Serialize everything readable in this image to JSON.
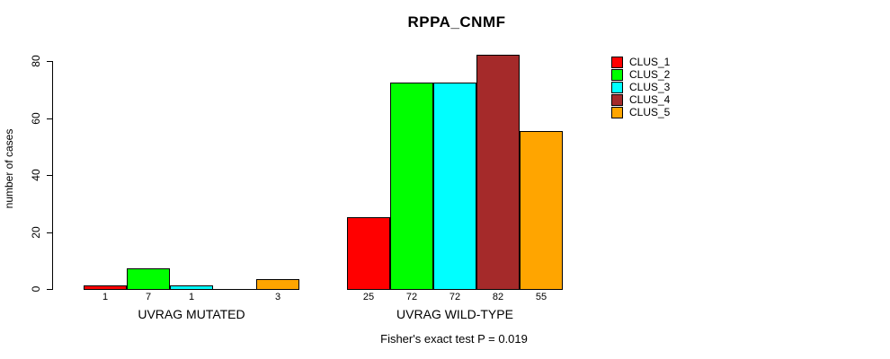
{
  "title": "RPPA_CNMF",
  "footnote": "Fisher's exact test P = 0.019",
  "chart_data": {
    "type": "bar",
    "title": "RPPA_CNMF",
    "xlabel": "",
    "ylabel": "number of cases",
    "ylim": [
      0,
      80
    ],
    "yticks": [
      0,
      20,
      40,
      60,
      80
    ],
    "grid": false,
    "legend_position": "top-right",
    "annotation": "Fisher's exact test P = 0.019",
    "categories": [
      "UVRAG MUTATED",
      "UVRAG WILD-TYPE"
    ],
    "series": [
      {
        "name": "CLUS_1",
        "color": "#ff0000",
        "values": [
          1,
          25
        ]
      },
      {
        "name": "CLUS_2",
        "color": "#00ff00",
        "values": [
          7,
          72
        ]
      },
      {
        "name": "CLUS_3",
        "color": "#00ffff",
        "values": [
          1,
          72
        ]
      },
      {
        "name": "CLUS_4",
        "color": "#a52a2a",
        "values": [
          0,
          82
        ]
      },
      {
        "name": "CLUS_5",
        "color": "#ffa500",
        "values": [
          3,
          55
        ]
      }
    ],
    "bar_value_labels": [
      [
        "1",
        "7",
        "1",
        "",
        "3"
      ],
      [
        "25",
        "72",
        "72",
        "82",
        "55"
      ]
    ]
  }
}
